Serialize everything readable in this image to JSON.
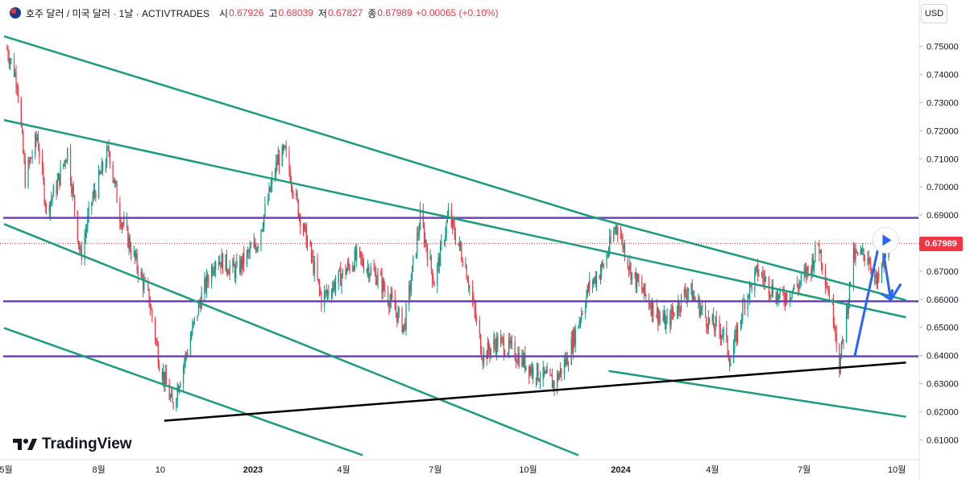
{
  "header": {
    "symbol": "호주 달러 / 미국 달러 · 1날 · ACTIVTRADES",
    "open_label": "시",
    "open_value": "0.67926",
    "high_label": "고",
    "high_value": "0.68039",
    "low_label": "저",
    "low_value": "0.67827",
    "close_label": "종",
    "close_value": "0.67989",
    "change": "+0.00065 (+0.10%)"
  },
  "currency_button": "USD",
  "logo_text": "TradingView",
  "current_price": "0.67989",
  "colors": {
    "up": "#089981",
    "down": "#f23645",
    "channel": "#1a9c80",
    "support": "#6f3fbf",
    "trendline": "#000000",
    "forecast_arrow": "#2962ff"
  },
  "chart_data": {
    "type": "candlestick",
    "title": "호주 달러 / 미국 달러 · 1날 · ACTIVTRADES",
    "ylim": [
      0.6035,
      0.7565
    ],
    "y_ticks": [
      "0.75000",
      "0.74000",
      "0.73000",
      "0.72000",
      "0.71000",
      "0.70000",
      "0.69000",
      "0.68000",
      "0.67000",
      "0.66000",
      "0.65000",
      "0.64000",
      "0.63000",
      "0.62000",
      "0.61000"
    ],
    "x_ticks": [
      "5월",
      "8월",
      "10",
      "2023",
      "4월",
      "7월",
      "10월",
      "2024",
      "4월",
      "7월",
      "10월"
    ],
    "last_price": 0.67989,
    "price_path": [
      [
        "2022-05-02",
        0.749
      ],
      [
        "2022-05-12",
        0.738
      ],
      [
        "2022-05-20",
        0.703
      ],
      [
        "2022-06-01",
        0.718
      ],
      [
        "2022-06-10",
        0.692
      ],
      [
        "2022-06-20",
        0.7
      ],
      [
        "2022-07-01",
        0.713
      ],
      [
        "2022-07-14",
        0.675
      ],
      [
        "2022-07-25",
        0.695
      ],
      [
        "2022-08-11",
        0.713
      ],
      [
        "2022-08-22",
        0.69
      ],
      [
        "2022-09-05",
        0.675
      ],
      [
        "2022-09-20",
        0.66
      ],
      [
        "2022-09-30",
        0.638
      ],
      [
        "2022-10-13",
        0.622
      ],
      [
        "2022-10-25",
        0.638
      ],
      [
        "2022-11-10",
        0.66
      ],
      [
        "2022-11-25",
        0.675
      ],
      [
        "2022-12-15",
        0.67
      ],
      [
        "2023-01-05",
        0.68
      ],
      [
        "2023-01-26",
        0.71
      ],
      [
        "2023-02-02",
        0.712
      ],
      [
        "2023-02-15",
        0.692
      ],
      [
        "2023-02-28",
        0.675
      ],
      [
        "2023-03-10",
        0.66
      ],
      [
        "2023-03-31",
        0.669
      ],
      [
        "2023-04-14",
        0.675
      ],
      [
        "2023-05-05",
        0.668
      ],
      [
        "2023-05-31",
        0.65
      ],
      [
        "2023-06-16",
        0.689
      ],
      [
        "2023-06-30",
        0.666
      ],
      [
        "2023-07-14",
        0.69
      ],
      [
        "2023-07-31",
        0.672
      ],
      [
        "2023-08-17",
        0.64
      ],
      [
        "2023-09-01",
        0.645
      ],
      [
        "2023-09-15",
        0.642
      ],
      [
        "2023-10-05",
        0.635
      ],
      [
        "2023-10-27",
        0.63
      ],
      [
        "2023-11-10",
        0.64
      ],
      [
        "2023-11-30",
        0.664
      ],
      [
        "2023-12-15",
        0.672
      ],
      [
        "2023-12-28",
        0.687
      ],
      [
        "2024-01-12",
        0.669
      ],
      [
        "2024-01-31",
        0.658
      ],
      [
        "2024-02-15",
        0.651
      ],
      [
        "2024-03-08",
        0.664
      ],
      [
        "2024-03-28",
        0.652
      ],
      [
        "2024-04-12",
        0.648
      ],
      [
        "2024-04-19",
        0.638
      ],
      [
        "2024-05-03",
        0.66
      ],
      [
        "2024-05-16",
        0.67
      ],
      [
        "2024-06-07",
        0.66
      ],
      [
        "2024-06-25",
        0.665
      ],
      [
        "2024-07-08",
        0.672
      ],
      [
        "2024-07-15",
        0.68
      ],
      [
        "2024-07-31",
        0.653
      ],
      [
        "2024-08-05",
        0.636
      ],
      [
        "2024-08-19",
        0.675
      ],
      [
        "2024-09-02",
        0.676
      ],
      [
        "2024-09-11",
        0.665
      ],
      [
        "2024-09-24",
        0.68
      ]
    ],
    "levels": [
      0.689,
      0.6593,
      0.6397
    ],
    "channel_lines": [
      [
        [
          "2022-04-29",
          0.7536
        ],
        [
          "2023-12-01",
          0.6896
        ],
        [
          "2024-10-10",
          0.6597
        ]
      ],
      [
        [
          "2022-04-29",
          0.7238
        ],
        [
          "2024-10-10",
          0.6536
        ]
      ],
      [
        [
          "2022-04-29",
          0.6868
        ],
        [
          "2023-11-20",
          0.6045
        ]
      ],
      [
        [
          "2022-04-29",
          0.6498
        ],
        [
          "2023-04-20",
          0.6045
        ]
      ],
      [
        [
          "2023-12-20",
          0.6345
        ],
        [
          "2024-10-10",
          0.6182
        ]
      ]
    ],
    "trendline": [
      [
        "2022-10-05",
        0.6168
      ],
      [
        "2024-10-10",
        0.6375
      ]
    ],
    "forecast_path": [
      [
        "2024-08-20",
        0.6395
      ],
      [
        "2024-09-15",
        0.6825
      ],
      [
        "2024-09-25",
        0.6598
      ],
      [
        "2024-10-05",
        0.6655
      ]
    ]
  }
}
